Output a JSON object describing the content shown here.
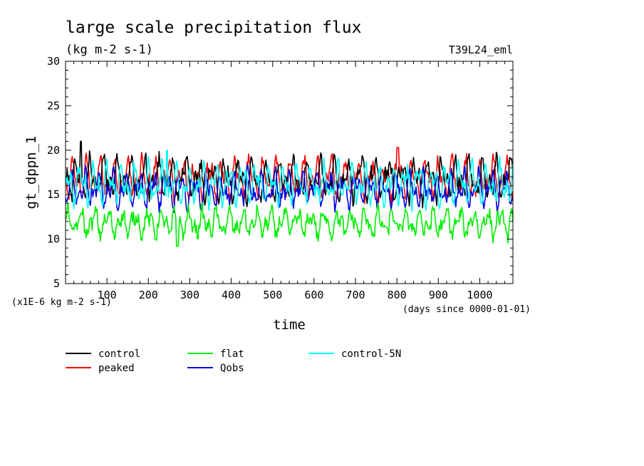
{
  "chart_data": {
    "type": "line",
    "title": "large scale precipitation flux",
    "subtitle": "(kg m-2 s-1)",
    "experiment_label": "T39L24_eml",
    "xlabel": "time",
    "ylabel": "gt_dppn_1",
    "x_units_note": "(days since 0000-01-01)",
    "y_units_note": "(x1E-6 kg m-2 s-1)",
    "xlim": [
      0,
      1080
    ],
    "ylim": [
      5,
      30
    ],
    "x_ticks": [
      100,
      200,
      300,
      400,
      500,
      600,
      700,
      800,
      900,
      1000
    ],
    "x_tick_labels": [
      "100",
      "200",
      "300",
      "400",
      "500",
      "600",
      "700",
      "800",
      "900",
      "1000"
    ],
    "y_ticks": [
      5,
      10,
      15,
      20,
      25,
      30
    ],
    "y_tick_labels": [
      "5",
      "10",
      "15",
      "20",
      "25",
      "30"
    ],
    "grid": false,
    "legend_placement": "below-plot",
    "series": [
      {
        "name": "control",
        "color": "#000000",
        "mean": 16.8,
        "amplitude": 1.8,
        "noise": 0.9,
        "min": 13.5,
        "max": 21.0,
        "peak_x": 37,
        "peak_y": 21.0
      },
      {
        "name": "peaked",
        "color": "#ff0000",
        "mean": 16.8,
        "amplitude": 1.7,
        "noise": 0.8,
        "min": 13.5,
        "max": 20.3,
        "peak_x": 802,
        "peak_y": 20.3
      },
      {
        "name": "flat",
        "color": "#00ee00",
        "mean": 11.8,
        "amplitude": 1.2,
        "noise": 0.7,
        "min": 9.2,
        "max": 14.5,
        "trough_x": 270,
        "trough_y": 9.2
      },
      {
        "name": "Qobs",
        "color": "#0000dd",
        "mean": 15.6,
        "amplitude": 1.5,
        "noise": 0.7,
        "min": 13.0,
        "max": 18.8
      },
      {
        "name": "control-5N",
        "color": "#00ffff",
        "mean": 16.2,
        "amplitude": 1.7,
        "noise": 0.8,
        "min": 13.0,
        "max": 20.0,
        "peak_x": 245,
        "peak_y": 20.0
      }
    ]
  }
}
